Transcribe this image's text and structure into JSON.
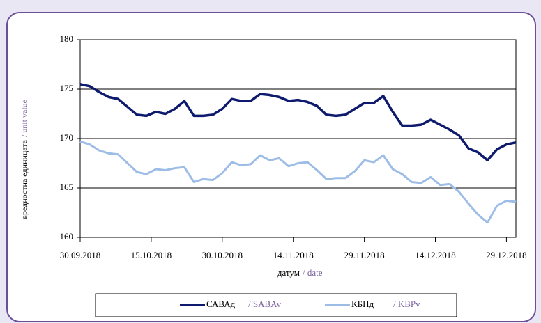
{
  "chart_data": {
    "type": "line",
    "xlabel": "датум",
    "xlabel_alt": "/ date",
    "ylabel": "вредностна единицата",
    "ylabel_alt": "/ unit value",
    "x": [
      "2018-09-30",
      "2018-10-02",
      "2018-10-04",
      "2018-10-06",
      "2018-10-08",
      "2018-10-10",
      "2018-10-12",
      "2018-10-14",
      "2018-10-16",
      "2018-10-18",
      "2018-10-20",
      "2018-10-22",
      "2018-10-24",
      "2018-10-26",
      "2018-10-28",
      "2018-10-30",
      "2018-11-01",
      "2018-11-03",
      "2018-11-05",
      "2018-11-07",
      "2018-11-09",
      "2018-11-11",
      "2018-11-13",
      "2018-11-15",
      "2018-11-17",
      "2018-11-19",
      "2018-11-21",
      "2018-11-23",
      "2018-11-25",
      "2018-11-27",
      "2018-11-29",
      "2018-12-01",
      "2018-12-03",
      "2018-12-05",
      "2018-12-07",
      "2018-12-09",
      "2018-12-11",
      "2018-12-13",
      "2018-12-15",
      "2018-12-17",
      "2018-12-19",
      "2018-12-21",
      "2018-12-23",
      "2018-12-25",
      "2018-12-27",
      "2018-12-29",
      "2018-12-31"
    ],
    "series": [
      {
        "name": "САВАд",
        "name_alt": "/ SABAv",
        "color": "#0d1a6e",
        "values": [
          175.5,
          175.3,
          174.7,
          174.2,
          174.0,
          173.2,
          172.4,
          172.3,
          172.7,
          172.5,
          173.0,
          173.8,
          172.3,
          172.3,
          172.4,
          173.0,
          174.0,
          173.8,
          173.8,
          174.5,
          174.4,
          174.2,
          173.8,
          173.9,
          173.7,
          173.3,
          172.4,
          172.3,
          172.4,
          173.0,
          173.6,
          173.6,
          174.3,
          172.7,
          171.3,
          171.3,
          171.4,
          171.9,
          171.4,
          170.9,
          170.3,
          169.0,
          168.6,
          167.8,
          168.9,
          169.4,
          169.6
        ]
      },
      {
        "name": "КБПд",
        "name_alt": "/ KBPv",
        "color": "#9dbde6",
        "values": [
          169.7,
          169.4,
          168.8,
          168.5,
          168.4,
          167.5,
          166.6,
          166.4,
          166.9,
          166.8,
          167.0,
          167.1,
          165.6,
          165.9,
          165.8,
          166.5,
          167.6,
          167.3,
          167.4,
          168.3,
          167.8,
          168.0,
          167.2,
          167.5,
          167.6,
          166.8,
          165.9,
          166.0,
          166.0,
          166.7,
          167.8,
          167.6,
          168.3,
          166.9,
          166.4,
          165.6,
          165.5,
          166.1,
          165.3,
          165.4,
          164.6,
          163.4,
          162.3,
          161.5,
          163.2,
          163.7,
          163.6
        ]
      }
    ],
    "xlim": [
      "2018-09-30",
      "2018-12-31"
    ],
    "xticks": [
      {
        "value": "2018-09-30",
        "label": "30.09.2018"
      },
      {
        "value": "2018-10-15",
        "label": "15.10.2018"
      },
      {
        "value": "2018-10-30",
        "label": "30.10.2018"
      },
      {
        "value": "2018-11-14",
        "label": "14.11.2018"
      },
      {
        "value": "2018-11-29",
        "label": "29.11.2018"
      },
      {
        "value": "2018-12-14",
        "label": "14.12.2018"
      },
      {
        "value": "2018-12-29",
        "label": "29.12.2018"
      }
    ],
    "ylim": [
      160,
      180
    ],
    "yticks": [
      160,
      165,
      170,
      175,
      180
    ],
    "grid": true
  }
}
